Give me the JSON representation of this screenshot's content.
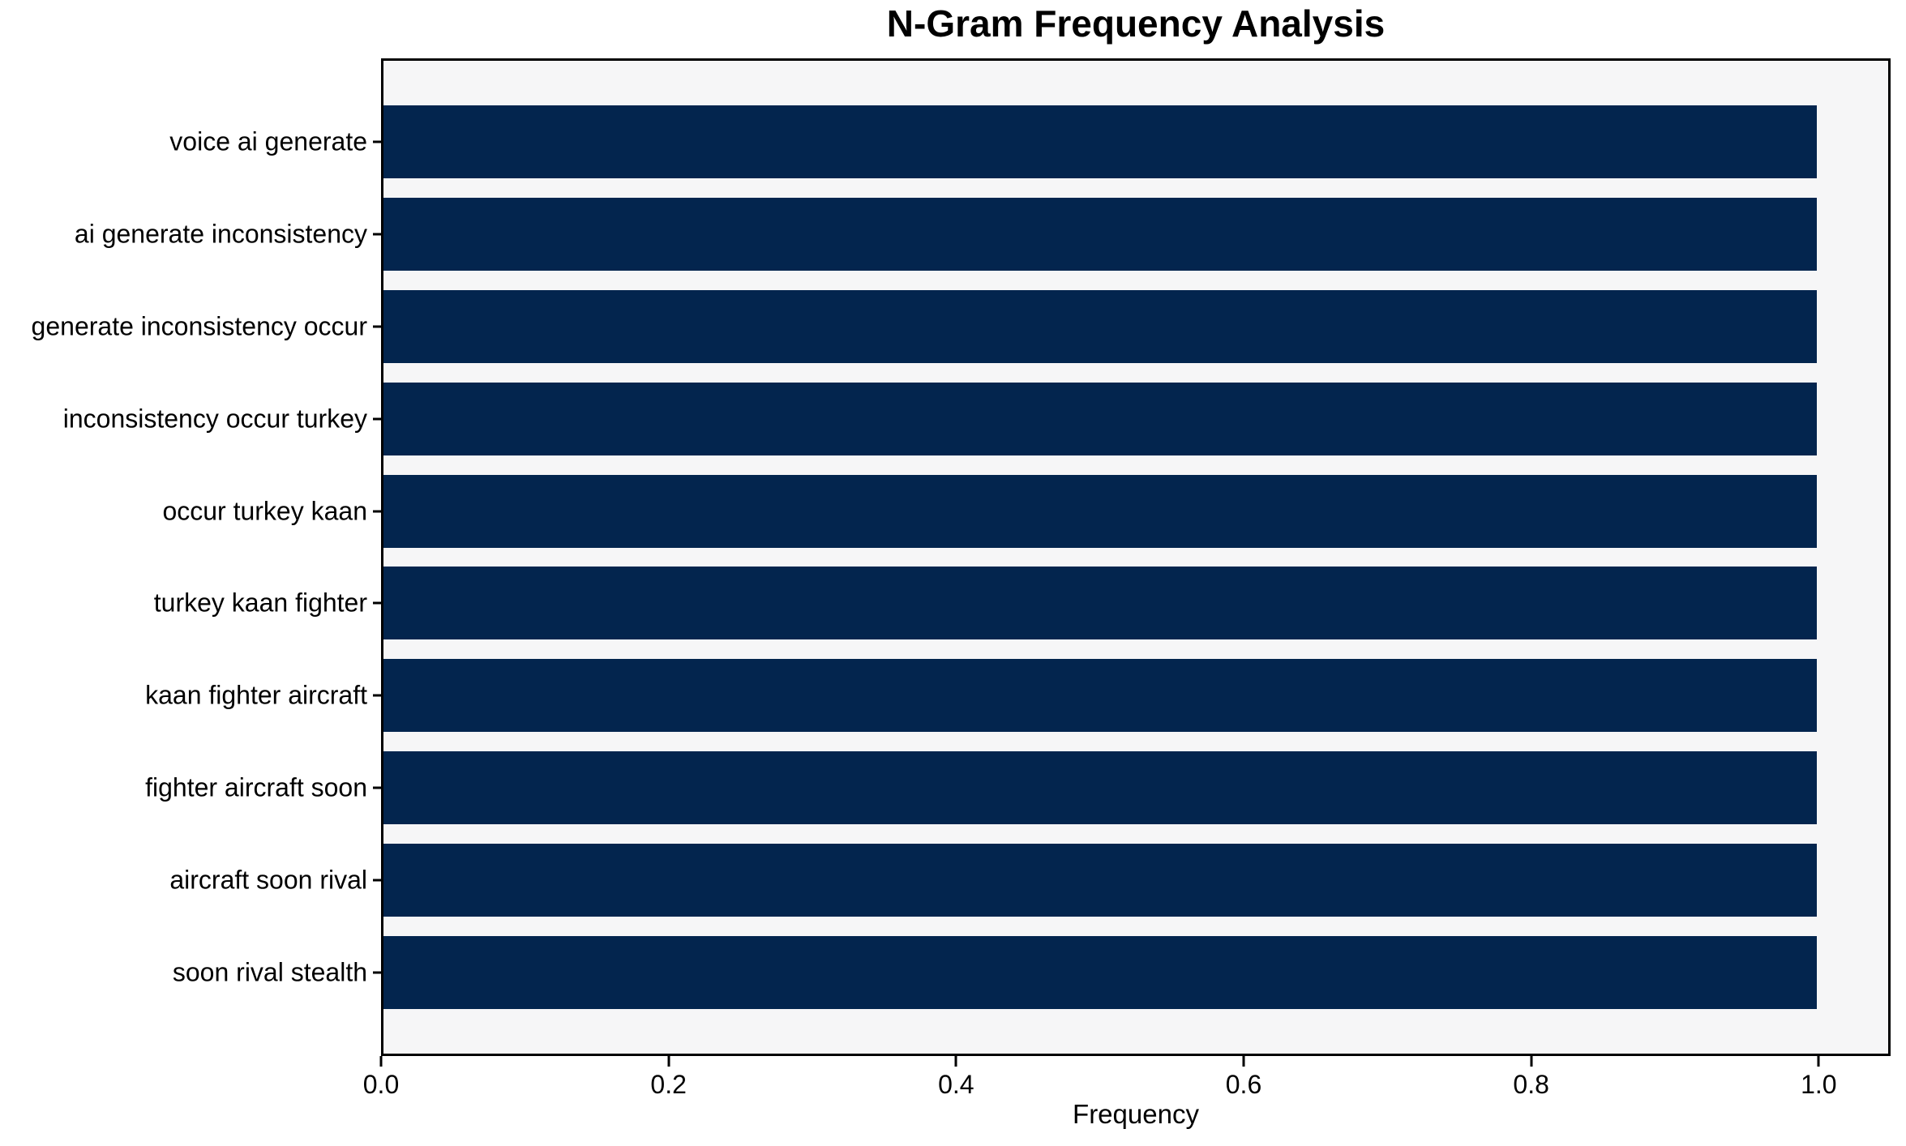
{
  "chart_data": {
    "type": "bar",
    "orientation": "horizontal",
    "title": "N-Gram Frequency Analysis",
    "xlabel": "Frequency",
    "ylabel": "",
    "categories": [
      "voice ai generate",
      "ai generate inconsistency",
      "generate inconsistency occur",
      "inconsistency occur turkey",
      "occur turkey kaan",
      "turkey kaan fighter",
      "kaan fighter aircraft",
      "fighter aircraft soon",
      "aircraft soon rival",
      "soon rival stealth"
    ],
    "values": [
      1.0,
      1.0,
      1.0,
      1.0,
      1.0,
      1.0,
      1.0,
      1.0,
      1.0,
      1.0
    ],
    "xlim": [
      0,
      1.05
    ],
    "x_tick_values": [
      0.0,
      0.2,
      0.4,
      0.6,
      0.8,
      1.0
    ],
    "x_tick_labels": [
      "0.0",
      "0.2",
      "0.4",
      "0.6",
      "0.8",
      "1.0"
    ],
    "grid": false,
    "legend": false,
    "colors": {
      "bar": "#03254e",
      "plot_background": "#f6f6f7",
      "figure_background": "#ffffff",
      "spine": "#000000",
      "text": "#000000"
    }
  }
}
